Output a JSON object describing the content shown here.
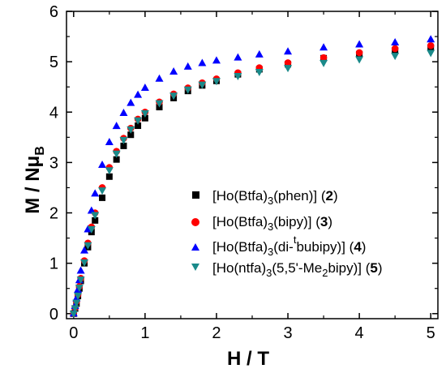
{
  "chart_data": {
    "type": "scatter",
    "xlabel": "H / T",
    "ylabel": "M / Nμ",
    "ylabel_sub": "B",
    "xlim": [
      -0.1,
      5.1
    ],
    "ylim": [
      -0.1,
      6
    ],
    "x_ticks": [
      0,
      1,
      2,
      3,
      4,
      5
    ],
    "y_ticks": [
      0,
      1,
      2,
      3,
      4,
      5,
      6
    ],
    "grid": false,
    "legend_position": "center-right",
    "series": [
      {
        "name": "[Ho(Btfa)3(phen)] (2)",
        "marker": "square",
        "color": "#000000",
        "x": [
          0.0,
          0.02,
          0.04,
          0.06,
          0.08,
          0.1,
          0.15,
          0.2,
          0.25,
          0.3,
          0.4,
          0.5,
          0.6,
          0.7,
          0.8,
          0.9,
          1.0,
          1.2,
          1.4,
          1.6,
          1.8,
          2.0,
          2.3,
          2.6,
          3.0,
          3.5,
          4.0,
          4.5,
          5.0
        ],
        "y": [
          0.0,
          0.1,
          0.2,
          0.35,
          0.5,
          0.65,
          1.0,
          1.32,
          1.62,
          1.85,
          2.3,
          2.72,
          3.06,
          3.33,
          3.55,
          3.73,
          3.88,
          4.1,
          4.28,
          4.42,
          4.53,
          4.62,
          4.75,
          4.85,
          4.95,
          5.07,
          5.15,
          5.22,
          5.28
        ]
      },
      {
        "name": "[Ho(Btfa)3(bipy)] (3)",
        "marker": "circle",
        "color": "#ff0000",
        "x": [
          0.0,
          0.02,
          0.04,
          0.06,
          0.08,
          0.1,
          0.15,
          0.2,
          0.25,
          0.3,
          0.4,
          0.5,
          0.6,
          0.7,
          0.8,
          0.9,
          1.0,
          1.2,
          1.4,
          1.6,
          1.8,
          2.0,
          2.3,
          2.6,
          3.0,
          3.5,
          4.0,
          4.5,
          5.0
        ],
        "y": [
          0.0,
          0.12,
          0.24,
          0.38,
          0.54,
          0.7,
          1.05,
          1.4,
          1.72,
          2.0,
          2.5,
          2.9,
          3.22,
          3.48,
          3.68,
          3.86,
          4.0,
          4.2,
          4.36,
          4.48,
          4.58,
          4.66,
          4.78,
          4.88,
          4.98,
          5.08,
          5.18,
          5.26,
          5.32
        ]
      },
      {
        "name": "[Ho(Btfa)3(di-tbubipy)] (4)",
        "marker": "triangle-up",
        "color": "#0000ff",
        "x": [
          0.0,
          0.02,
          0.04,
          0.06,
          0.08,
          0.1,
          0.15,
          0.2,
          0.25,
          0.3,
          0.4,
          0.5,
          0.6,
          0.7,
          0.8,
          0.9,
          1.0,
          1.2,
          1.4,
          1.6,
          1.8,
          2.0,
          2.3,
          2.6,
          3.0,
          3.5,
          4.0,
          4.5,
          5.0
        ],
        "y": [
          0.0,
          0.15,
          0.3,
          0.47,
          0.66,
          0.85,
          1.25,
          1.67,
          2.04,
          2.38,
          2.95,
          3.4,
          3.72,
          3.98,
          4.18,
          4.34,
          4.48,
          4.66,
          4.8,
          4.9,
          4.97,
          5.02,
          5.08,
          5.14,
          5.2,
          5.28,
          5.34,
          5.38,
          5.44
        ]
      },
      {
        "name": "[Ho(ntfa)3(5,5'-Me2bipy)] (5)",
        "marker": "triangle-down",
        "color": "#1a8a8a",
        "x": [
          0.0,
          0.02,
          0.04,
          0.06,
          0.08,
          0.1,
          0.15,
          0.2,
          0.25,
          0.3,
          0.4,
          0.5,
          0.6,
          0.7,
          0.8,
          0.9,
          1.0,
          1.2,
          1.4,
          1.6,
          1.8,
          2.0,
          2.3,
          2.6,
          3.0,
          3.5,
          4.0,
          4.5,
          5.0
        ],
        "y": [
          0.0,
          0.11,
          0.22,
          0.36,
          0.52,
          0.68,
          1.02,
          1.36,
          1.68,
          1.96,
          2.45,
          2.85,
          3.18,
          3.45,
          3.66,
          3.84,
          3.98,
          4.18,
          4.33,
          4.45,
          4.55,
          4.62,
          4.72,
          4.8,
          4.88,
          4.98,
          5.05,
          5.12,
          5.18
        ]
      }
    ],
    "legend": [
      {
        "pre": "[Ho(Btfa)",
        "sub": "3",
        "mid": "(phen)] (",
        "bold": "2",
        "post": ")"
      },
      {
        "pre": "[Ho(Btfa)",
        "sub": "3",
        "mid": "(bipy)] (",
        "bold": "3",
        "post": ")"
      },
      {
        "pre": "[Ho(Btfa)",
        "sub": "3",
        "mid": "(di-",
        "sup": "t",
        "mid2": "bubipy)] (",
        "bold": "4",
        "post": ")"
      },
      {
        "pre": "[Ho(ntfa)",
        "sub": "3",
        "mid": "(5,5'-Me",
        "sub2": "2",
        "mid2": "bipy)] (",
        "bold": "5",
        "post": ")"
      }
    ]
  }
}
